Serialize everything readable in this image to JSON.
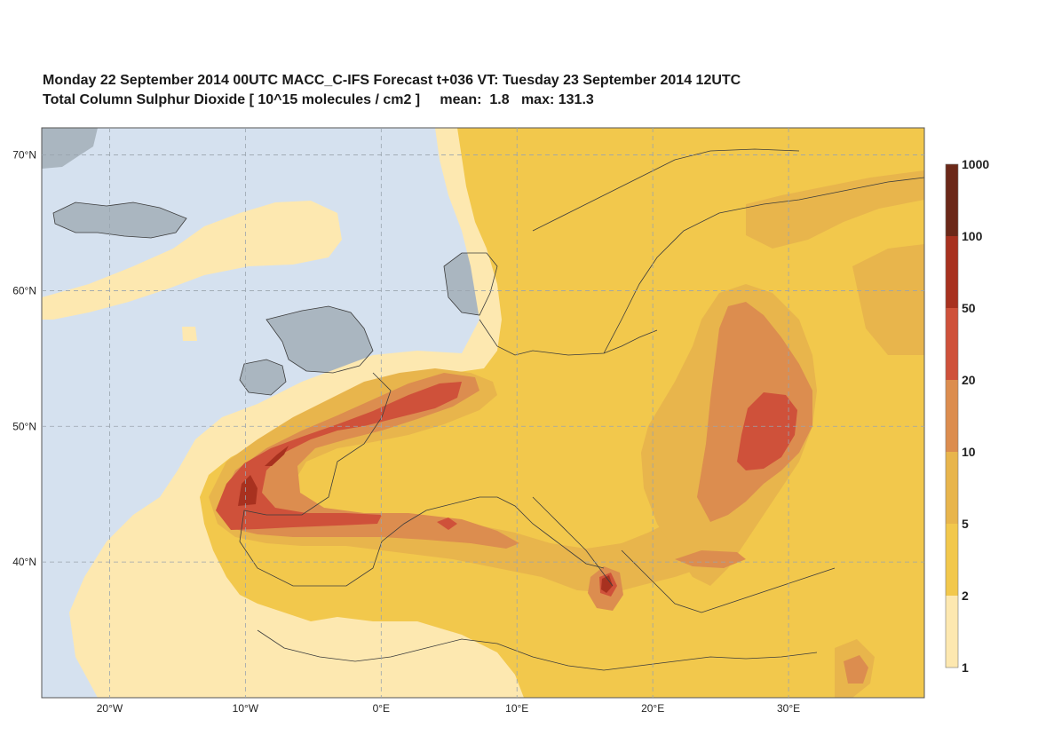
{
  "title_line1": "Monday 22 September 2014 00UTC MACC_C-IFS Forecast t+036 VT: Tuesday 23 September 2014 12UTC",
  "title_line2": "Total Column Sulphur Dioxide [ 10^15 molecules / cm2 ]     mean:  1.8   max: 131.3",
  "map": {
    "lon_range": [
      -25,
      40
    ],
    "lat_range": [
      30,
      72
    ],
    "lat_ticks": [
      {
        "value": 70,
        "label": "70°N"
      },
      {
        "value": 60,
        "label": "60°N"
      },
      {
        "value": 50,
        "label": "50°N"
      },
      {
        "value": 40,
        "label": "40°N"
      }
    ],
    "lon_ticks": [
      {
        "value": -20,
        "label": "20°W"
      },
      {
        "value": -10,
        "label": "10°W"
      },
      {
        "value": 0,
        "label": "0°E"
      },
      {
        "value": 10,
        "label": "10°E"
      },
      {
        "value": 20,
        "label": "20°E"
      },
      {
        "value": 30,
        "label": "30°E"
      }
    ],
    "colors": {
      "ocean": "#d5e1ef",
      "land_bare": "#aab6c0",
      "coast": "#3c3c3c",
      "grid": "#9aa4ae"
    }
  },
  "legend": {
    "levels": [
      "1000",
      "100",
      "50",
      "20",
      "10",
      "5",
      "2",
      "1"
    ],
    "colors_top_to_bottom": [
      "#6b2818",
      "#a8311f",
      "#cf513a",
      "#dc8d4f",
      "#e8b54c",
      "#f2c84c",
      "#fde8b0"
    ]
  }
}
